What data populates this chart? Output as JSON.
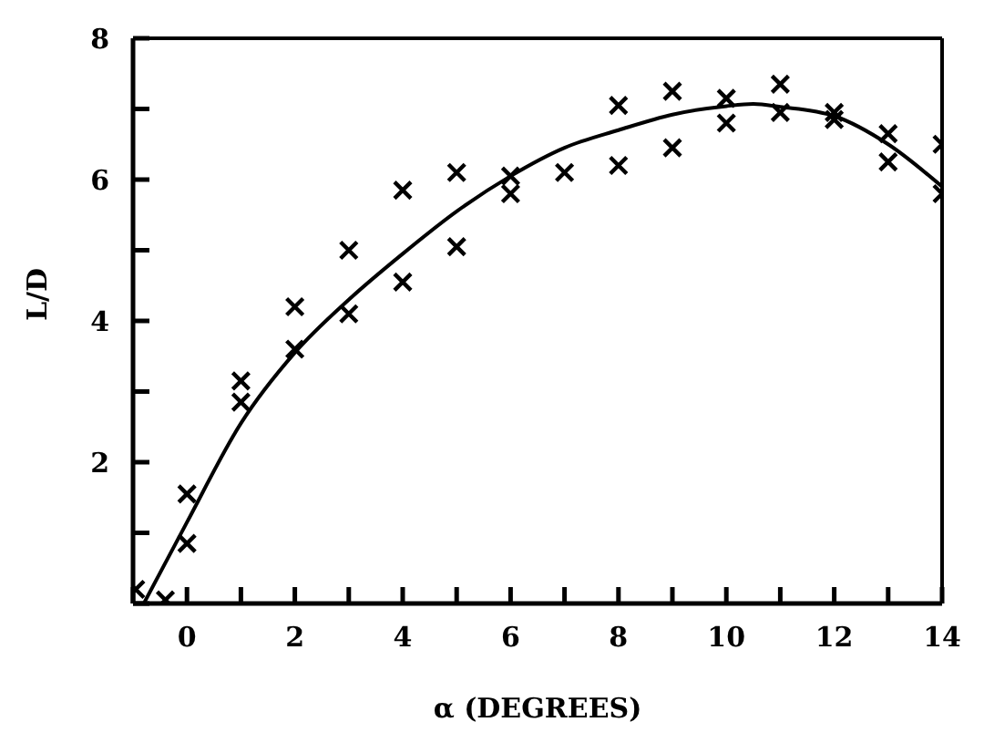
{
  "chart_data": {
    "type": "scatter",
    "xlabel": "α (DEGREES)",
    "ylabel": "L/D",
    "xlim": [
      -1,
      14
    ],
    "ylim": [
      0,
      8
    ],
    "xticks": [
      {
        "value": -1,
        "label": null
      },
      0,
      {
        "value": 1,
        "label": null
      },
      2,
      {
        "value": 3,
        "label": null
      },
      4,
      {
        "value": 5,
        "label": null
      },
      6,
      {
        "value": 7,
        "label": null
      },
      8,
      {
        "value": 9,
        "label": null
      },
      10,
      {
        "value": 11,
        "label": null
      },
      12,
      {
        "value": 13,
        "label": null
      },
      14
    ],
    "yticks": [
      {
        "value": 0,
        "label": null
      },
      {
        "value": 1,
        "label": null
      },
      2,
      {
        "value": 3,
        "label": null
      },
      4,
      {
        "value": 5,
        "label": null
      },
      6,
      {
        "value": 7,
        "label": null
      },
      8
    ],
    "grid": false,
    "series": [
      {
        "marker": "cross",
        "color": "#000000",
        "x": [
          -0.95,
          -0.4,
          0,
          0,
          1,
          1,
          2,
          2,
          3,
          3,
          4,
          4,
          5,
          5,
          6,
          6,
          7,
          8,
          8,
          9,
          9,
          10,
          10,
          11,
          11,
          12,
          12,
          13,
          13,
          14,
          14
        ],
        "values": [
          0.2,
          0.05,
          1.55,
          0.85,
          3.15,
          2.85,
          4.2,
          3.6,
          5.0,
          4.1,
          5.85,
          4.55,
          6.1,
          5.05,
          6.05,
          5.8,
          6.1,
          7.05,
          6.2,
          7.25,
          6.45,
          7.15,
          6.8,
          7.35,
          6.95,
          6.95,
          6.85,
          6.65,
          6.25,
          6.5,
          5.8
        ]
      },
      {
        "type": "line",
        "marker": "none",
        "line_style": "solid",
        "color": "#000000",
        "x": [
          -0.8,
          0,
          1,
          2,
          3,
          4,
          5,
          6,
          7,
          8,
          9,
          10,
          10.5,
          11,
          12,
          13,
          14
        ],
        "values": [
          0,
          1.15,
          2.55,
          3.55,
          4.3,
          4.95,
          5.55,
          6.05,
          6.45,
          6.7,
          6.92,
          7.04,
          7.07,
          7.03,
          6.9,
          6.5,
          5.9
        ]
      }
    ]
  }
}
